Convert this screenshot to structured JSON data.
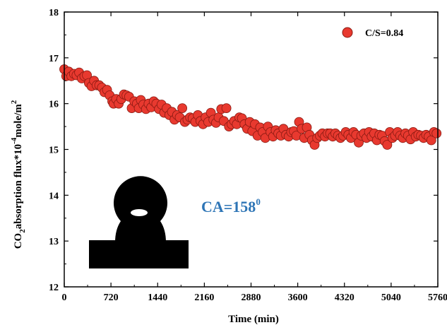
{
  "chart_data": {
    "type": "scatter",
    "title": "",
    "xlabel": "Time (min)",
    "ylabel_parts": [
      "CO",
      "2",
      "absorption flux*10",
      "-4",
      "mole/m",
      "2"
    ],
    "xlim": [
      0,
      5760
    ],
    "ylim": [
      12,
      18
    ],
    "x_ticks": [
      0,
      720,
      1440,
      2160,
      2880,
      3600,
      4320,
      5040,
      5760
    ],
    "y_ticks": [
      12,
      13,
      14,
      15,
      16,
      17,
      18
    ],
    "legend": {
      "position": "top-right",
      "label": "C/S=0.84"
    },
    "annotation": {
      "text": "CA=158",
      "superscript": "0",
      "color": "#2e75b6"
    },
    "inset": "water-droplet-image",
    "grid": false,
    "marker_color": "#e8392f",
    "series": [
      {
        "name": "C/S=0.84",
        "points": [
          [
            0,
            16.75
          ],
          [
            30,
            16.6
          ],
          [
            70,
            16.7
          ],
          [
            110,
            16.6
          ],
          [
            150,
            16.65
          ],
          [
            190,
            16.62
          ],
          [
            230,
            16.68
          ],
          [
            270,
            16.55
          ],
          [
            310,
            16.6
          ],
          [
            350,
            16.62
          ],
          [
            380,
            16.45
          ],
          [
            420,
            16.38
          ],
          [
            460,
            16.5
          ],
          [
            500,
            16.4
          ],
          [
            540,
            16.4
          ],
          [
            580,
            16.35
          ],
          [
            620,
            16.25
          ],
          [
            660,
            16.3
          ],
          [
            700,
            16.18
          ],
          [
            740,
            16.05
          ],
          [
            760,
            16.0
          ],
          [
            800,
            16.1
          ],
          [
            840,
            16.0
          ],
          [
            880,
            16.1
          ],
          [
            920,
            16.2
          ],
          [
            960,
            16.18
          ],
          [
            1000,
            16.15
          ],
          [
            1040,
            15.9
          ],
          [
            1080,
            16.05
          ],
          [
            1120,
            16.0
          ],
          [
            1150,
            15.9
          ],
          [
            1180,
            16.08
          ],
          [
            1220,
            15.98
          ],
          [
            1260,
            15.88
          ],
          [
            1300,
            16.0
          ],
          [
            1340,
            15.92
          ],
          [
            1380,
            16.05
          ],
          [
            1420,
            16.0
          ],
          [
            1460,
            15.88
          ],
          [
            1500,
            15.98
          ],
          [
            1540,
            15.8
          ],
          [
            1580,
            15.9
          ],
          [
            1620,
            15.75
          ],
          [
            1660,
            15.82
          ],
          [
            1700,
            15.65
          ],
          [
            1740,
            15.75
          ],
          [
            1780,
            15.7
          ],
          [
            1820,
            15.9
          ],
          [
            1860,
            15.6
          ],
          [
            1900,
            15.65
          ],
          [
            1940,
            15.7
          ],
          [
            1980,
            15.68
          ],
          [
            2020,
            15.6
          ],
          [
            2060,
            15.75
          ],
          [
            2100,
            15.62
          ],
          [
            2140,
            15.55
          ],
          [
            2180,
            15.7
          ],
          [
            2220,
            15.6
          ],
          [
            2260,
            15.8
          ],
          [
            2300,
            15.65
          ],
          [
            2340,
            15.58
          ],
          [
            2380,
            15.7
          ],
          [
            2420,
            15.88
          ],
          [
            2460,
            15.62
          ],
          [
            2500,
            15.9
          ],
          [
            2540,
            15.5
          ],
          [
            2580,
            15.55
          ],
          [
            2620,
            15.62
          ],
          [
            2660,
            15.55
          ],
          [
            2700,
            15.7
          ],
          [
            2740,
            15.68
          ],
          [
            2780,
            15.55
          ],
          [
            2820,
            15.45
          ],
          [
            2860,
            15.6
          ],
          [
            2900,
            15.4
          ],
          [
            2940,
            15.55
          ],
          [
            2980,
            15.3
          ],
          [
            3020,
            15.48
          ],
          [
            3060,
            15.38
          ],
          [
            3100,
            15.25
          ],
          [
            3140,
            15.5
          ],
          [
            3180,
            15.38
          ],
          [
            3220,
            15.28
          ],
          [
            3260,
            15.42
          ],
          [
            3300,
            15.35
          ],
          [
            3340,
            15.3
          ],
          [
            3380,
            15.45
          ],
          [
            3420,
            15.32
          ],
          [
            3460,
            15.28
          ],
          [
            3500,
            15.38
          ],
          [
            3540,
            15.4
          ],
          [
            3580,
            15.3
          ],
          [
            3620,
            15.6
          ],
          [
            3660,
            15.45
          ],
          [
            3700,
            15.25
          ],
          [
            3740,
            15.48
          ],
          [
            3780,
            15.32
          ],
          [
            3820,
            15.2
          ],
          [
            3860,
            15.1
          ],
          [
            3900,
            15.25
          ],
          [
            3940,
            15.3
          ],
          [
            3980,
            15.35
          ],
          [
            4020,
            15.28
          ],
          [
            4060,
            15.35
          ],
          [
            4100,
            15.35
          ],
          [
            4140,
            15.28
          ],
          [
            4180,
            15.35
          ],
          [
            4220,
            15.3
          ],
          [
            4260,
            15.25
          ],
          [
            4300,
            15.3
          ],
          [
            4340,
            15.38
          ],
          [
            4380,
            15.32
          ],
          [
            4420,
            15.25
          ],
          [
            4460,
            15.38
          ],
          [
            4500,
            15.32
          ],
          [
            4540,
            15.15
          ],
          [
            4580,
            15.3
          ],
          [
            4620,
            15.35
          ],
          [
            4660,
            15.25
          ],
          [
            4700,
            15.38
          ],
          [
            4740,
            15.28
          ],
          [
            4780,
            15.35
          ],
          [
            4820,
            15.2
          ],
          [
            4860,
            15.32
          ],
          [
            4900,
            15.3
          ],
          [
            4940,
            15.18
          ],
          [
            4980,
            15.1
          ],
          [
            5020,
            15.38
          ],
          [
            5060,
            15.25
          ],
          [
            5100,
            15.3
          ],
          [
            5140,
            15.38
          ],
          [
            5180,
            15.3
          ],
          [
            5220,
            15.25
          ],
          [
            5260,
            15.35
          ],
          [
            5300,
            15.3
          ],
          [
            5340,
            15.22
          ],
          [
            5380,
            15.38
          ],
          [
            5420,
            15.28
          ],
          [
            5460,
            15.32
          ],
          [
            5500,
            15.3
          ],
          [
            5540,
            15.25
          ],
          [
            5580,
            15.32
          ],
          [
            5620,
            15.28
          ],
          [
            5660,
            15.2
          ],
          [
            5700,
            15.38
          ],
          [
            5740,
            15.35
          ]
        ]
      }
    ]
  }
}
